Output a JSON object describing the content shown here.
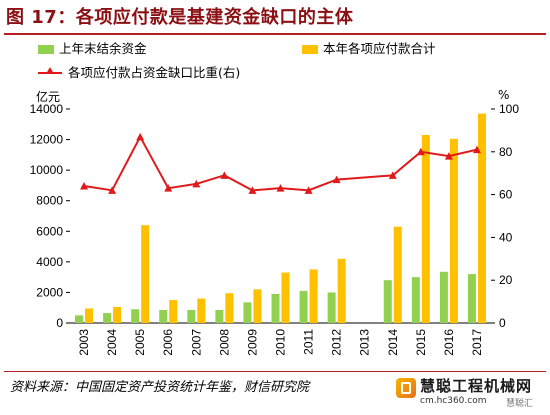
{
  "title": "图 17：各项应付款是基建资金缺口的主体",
  "legend": {
    "series1": "上年末结余资金",
    "series2": "本年各项应付款合计",
    "series3": "各项应付款占资金缺口比重(右)"
  },
  "left_unit": "亿元",
  "right_unit": "%",
  "source_text": "资料来源：中国固定资产投资统计年鉴，财信研究院",
  "watermark": {
    "name": "慧聪工程机械网",
    "url": "cm.hc360.com",
    "side": "慧聪汇"
  },
  "colors": {
    "bar1": "#92d050",
    "bar2": "#ffc000",
    "line": "#e01a1a",
    "title": "#8b0f13",
    "rule": "#b51f24"
  },
  "chart_data": {
    "type": "bar",
    "categories": [
      "2003",
      "2004",
      "2005",
      "2006",
      "2007",
      "2008",
      "2009",
      "2010",
      "2011",
      "2012",
      "2013",
      "2014",
      "2015",
      "2016",
      "2017"
    ],
    "series": [
      {
        "name": "上年末结余资金",
        "axis": "left",
        "type": "bar",
        "values": [
          500,
          650,
          900,
          850,
          850,
          850,
          1350,
          1900,
          2100,
          2000,
          null,
          2800,
          3000,
          3350,
          3200
        ]
      },
      {
        "name": "本年各项应付款合计",
        "axis": "left",
        "type": "bar",
        "values": [
          950,
          1050,
          6400,
          1500,
          1600,
          1950,
          2200,
          3300,
          3500,
          4200,
          null,
          6300,
          12300,
          12050,
          13700
        ]
      },
      {
        "name": "各项应付款占资金缺口比重(右)",
        "axis": "right",
        "type": "line",
        "values": [
          64,
          62,
          87,
          63,
          65,
          69,
          62,
          63,
          62,
          67,
          null,
          69,
          80,
          78,
          81
        ]
      }
    ],
    "y_left": {
      "min": 0,
      "max": 14000,
      "ticks": [
        0,
        2000,
        4000,
        6000,
        8000,
        10000,
        12000,
        14000
      ],
      "unit": "亿元"
    },
    "y_right": {
      "min": 0,
      "max": 100,
      "ticks": [
        0,
        20,
        40,
        60,
        80,
        100
      ],
      "unit": "%"
    },
    "grid": false,
    "legend_position": "top"
  }
}
